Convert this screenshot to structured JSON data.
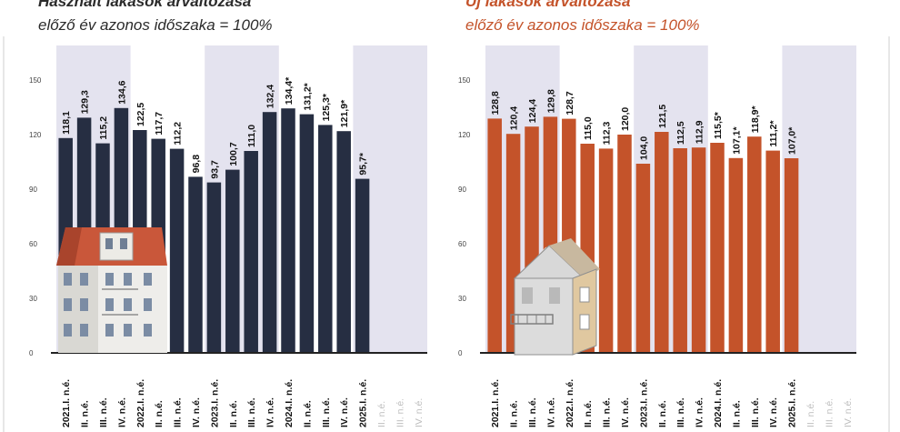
{
  "colors": {
    "used_bar": "#262e42",
    "new_bar": "#c4532a",
    "band": "#e4e3ef",
    "title_used": "#2b2b2b",
    "title_new": "#c4532a",
    "axis": "#222222"
  },
  "chart_data": [
    {
      "type": "bar",
      "title": "Használt lakások árváltozása",
      "subtitle": "előző év azonos időszaka = 100%",
      "categories": [
        "2021.I. n.é.",
        "II. n.é.",
        "III. n.é.",
        "IV. n.é.",
        "2022.I. n.é.",
        "II. n.é.",
        "III. n.é.",
        "IV. n.é.",
        "2023.I. n.é.",
        "II. n.é.",
        "III. n.é.",
        "IV. n.é.",
        "2024.I. n.é.",
        "II. n.é.",
        "III. n.é.",
        "IV. n.é.",
        "2025.I. n.é.",
        "II. n.é.",
        "III. n.é.",
        "IV. n.é."
      ],
      "values": [
        118.1,
        129.3,
        115.2,
        134.6,
        122.5,
        117.7,
        112.2,
        96.8,
        93.7,
        100.7,
        111.0,
        132.4,
        134.4,
        131.2,
        125.3,
        121.9,
        95.7,
        null,
        null,
        null
      ],
      "data_labels": [
        "118,1",
        "129,3",
        "115,2",
        "134,6",
        "122,5",
        "117,7",
        "112,2",
        "96,8",
        "93,7",
        "100,7",
        "111,0",
        "132,4",
        "134,4*",
        "131,2*",
        "125,3*",
        "121,9*",
        "95,7*",
        "",
        "",
        ""
      ],
      "yticks": [
        "0",
        "30",
        "60",
        "90",
        "120",
        "150"
      ],
      "ylim": [
        0,
        150
      ],
      "grid": false,
      "legend": "none"
    },
    {
      "type": "bar",
      "title": "Új lakások árváltozása",
      "subtitle": "előző év azonos időszaka = 100%",
      "categories": [
        "2021.I. n.é.",
        "II. n.é.",
        "III. n.é.",
        "IV. n.é.",
        "2022.I. n.é.",
        "II. n.é.",
        "III. n.é.",
        "IV. n.é.",
        "2023.I. n.é.",
        "II. n.é.",
        "III. n.é.",
        "IV. n.é.",
        "2024.I. n.é.",
        "II. n.é.",
        "III. n.é.",
        "IV. n.é.",
        "2025.I. n.é.",
        "II. n.é.",
        "III. n.é.",
        "IV. n.é."
      ],
      "values": [
        128.8,
        120.4,
        124.4,
        129.8,
        128.7,
        115.0,
        112.3,
        120.0,
        104.0,
        121.5,
        112.5,
        112.9,
        115.5,
        107.1,
        118.9,
        111.2,
        107.0,
        null,
        null,
        null
      ],
      "data_labels": [
        "128,8",
        "120,4",
        "124,4",
        "129,8",
        "128,7",
        "115,0",
        "112,3",
        "120,0",
        "104,0",
        "121,5",
        "112,5",
        "112,9",
        "115,5*",
        "107,1*",
        "118,9*",
        "111,2*",
        "107,0*",
        "",
        "",
        ""
      ],
      "yticks": [
        "0",
        "30",
        "60",
        "90",
        "120",
        "150"
      ],
      "ylim": [
        0,
        150
      ],
      "grid": false,
      "legend": "none"
    }
  ]
}
